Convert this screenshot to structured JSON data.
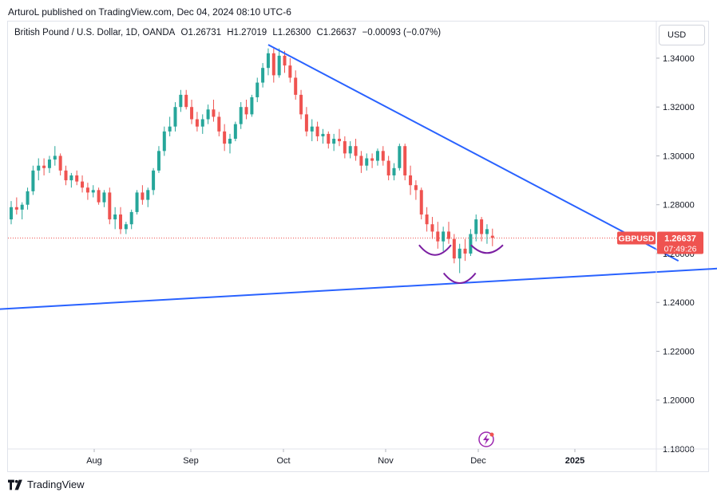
{
  "publisher": "ArturoL published on TradingView.com, Dec 04, 2024 08:10 UTC-6",
  "legend": {
    "symbol_name": "British Pound / U.S. Dollar, 1D, OANDA",
    "open": "O1.26731",
    "high": "H1.27019",
    "low": "L1.26300",
    "close": "C1.26637",
    "change": "−0.00093 (−0.07%)"
  },
  "currency": "USD",
  "price_tag": {
    "symbol": "GBPUSD",
    "price": "1.26637",
    "countdown": "07:49:26"
  },
  "footer": {
    "brand": "TradingView"
  },
  "colors": {
    "up": "#26a69a",
    "down": "#ef5350",
    "trendline": "#2962ff",
    "pattern": "#7b1fa2",
    "price_line": "#ef5350"
  },
  "chart_data": {
    "type": "candlestick",
    "title": "",
    "ylim": [
      1.18,
      1.355
    ],
    "y_ticks": [
      "1.34000",
      "1.32000",
      "1.30000",
      "1.28000",
      "1.26000",
      "1.24000",
      "1.22000",
      "1.20000",
      "1.18000"
    ],
    "x_ticks": [
      "Aug",
      "Sep",
      "Oct",
      "Nov",
      "Dec",
      "2025"
    ],
    "last_price": 1.26637,
    "candles_approx_ohlc": [
      [
        1.274,
        1.2815,
        1.272,
        1.279
      ],
      [
        1.279,
        1.283,
        1.276,
        1.278
      ],
      [
        1.278,
        1.281,
        1.274,
        1.28
      ],
      [
        1.28,
        1.287,
        1.278,
        1.2855
      ],
      [
        1.2855,
        1.296,
        1.284,
        1.294
      ],
      [
        1.294,
        1.299,
        1.29,
        1.296
      ],
      [
        1.296,
        1.299,
        1.292,
        1.295
      ],
      [
        1.295,
        1.3,
        1.293,
        1.2985
      ],
      [
        1.2985,
        1.304,
        1.296,
        1.3
      ],
      [
        1.3,
        1.301,
        1.292,
        1.294
      ],
      [
        1.294,
        1.296,
        1.288,
        1.29
      ],
      [
        1.29,
        1.293,
        1.287,
        1.292
      ],
      [
        1.292,
        1.294,
        1.288,
        1.2895
      ],
      [
        1.2895,
        1.292,
        1.285,
        1.287
      ],
      [
        1.287,
        1.289,
        1.282,
        1.285
      ],
      [
        1.285,
        1.288,
        1.283,
        1.286
      ],
      [
        1.286,
        1.287,
        1.28,
        1.281
      ],
      [
        1.281,
        1.286,
        1.279,
        1.285
      ],
      [
        1.285,
        1.287,
        1.272,
        1.274
      ],
      [
        1.274,
        1.279,
        1.27,
        1.276
      ],
      [
        1.276,
        1.279,
        1.268,
        1.27
      ],
      [
        1.27,
        1.273,
        1.268,
        1.272
      ],
      [
        1.272,
        1.278,
        1.27,
        1.277
      ],
      [
        1.277,
        1.286,
        1.276,
        1.285
      ],
      [
        1.285,
        1.288,
        1.28,
        1.282
      ],
      [
        1.282,
        1.287,
        1.279,
        1.286
      ],
      [
        1.286,
        1.295,
        1.284,
        1.294
      ],
      [
        1.294,
        1.304,
        1.293,
        1.302
      ],
      [
        1.302,
        1.312,
        1.3,
        1.31
      ],
      [
        1.31,
        1.316,
        1.308,
        1.312
      ],
      [
        1.312,
        1.322,
        1.31,
        1.32
      ],
      [
        1.32,
        1.327,
        1.318,
        1.325
      ],
      [
        1.325,
        1.327,
        1.319,
        1.32
      ],
      [
        1.32,
        1.323,
        1.313,
        1.315
      ],
      [
        1.315,
        1.318,
        1.31,
        1.312
      ],
      [
        1.312,
        1.317,
        1.309,
        1.315
      ],
      [
        1.315,
        1.321,
        1.313,
        1.319
      ],
      [
        1.319,
        1.323,
        1.314,
        1.316
      ],
      [
        1.316,
        1.318,
        1.308,
        1.31
      ],
      [
        1.31,
        1.313,
        1.302,
        1.305
      ],
      [
        1.305,
        1.309,
        1.301,
        1.307
      ],
      [
        1.307,
        1.314,
        1.306,
        1.313
      ],
      [
        1.313,
        1.322,
        1.311,
        1.32
      ],
      [
        1.32,
        1.323,
        1.315,
        1.317
      ],
      [
        1.317,
        1.325,
        1.316,
        1.324
      ],
      [
        1.324,
        1.332,
        1.322,
        1.33
      ],
      [
        1.33,
        1.338,
        1.328,
        1.336
      ],
      [
        1.336,
        1.344,
        1.333,
        1.342
      ],
      [
        1.342,
        1.344,
        1.33,
        1.333
      ],
      [
        1.333,
        1.344,
        1.332,
        1.341
      ],
      [
        1.341,
        1.343,
        1.334,
        1.337
      ],
      [
        1.337,
        1.34,
        1.33,
        1.332
      ],
      [
        1.332,
        1.335,
        1.323,
        1.325
      ],
      [
        1.325,
        1.327,
        1.315,
        1.317
      ],
      [
        1.317,
        1.32,
        1.308,
        1.31
      ],
      [
        1.31,
        1.315,
        1.306,
        1.312
      ],
      [
        1.312,
        1.314,
        1.306,
        1.308
      ],
      [
        1.308,
        1.311,
        1.305,
        1.309
      ],
      [
        1.309,
        1.31,
        1.303,
        1.305
      ],
      [
        1.305,
        1.309,
        1.302,
        1.307
      ],
      [
        1.307,
        1.311,
        1.304,
        1.306
      ],
      [
        1.306,
        1.308,
        1.299,
        1.301
      ],
      [
        1.301,
        1.306,
        1.299,
        1.304
      ],
      [
        1.304,
        1.307,
        1.298,
        1.3
      ],
      [
        1.3,
        1.302,
        1.293,
        1.296
      ],
      [
        1.296,
        1.301,
        1.294,
        1.299
      ],
      [
        1.299,
        1.301,
        1.295,
        1.298
      ],
      [
        1.298,
        1.303,
        1.296,
        1.302
      ],
      [
        1.302,
        1.304,
        1.296,
        1.298
      ],
      [
        1.298,
        1.3,
        1.29,
        1.292
      ],
      [
        1.292,
        1.297,
        1.29,
        1.295
      ],
      [
        1.295,
        1.305,
        1.294,
        1.304
      ],
      [
        1.304,
        1.305,
        1.29,
        1.292
      ],
      [
        1.292,
        1.296,
        1.284,
        1.288
      ],
      [
        1.288,
        1.29,
        1.282,
        1.286
      ],
      [
        1.286,
        1.287,
        1.274,
        1.276
      ],
      [
        1.276,
        1.279,
        1.269,
        1.272
      ],
      [
        1.272,
        1.275,
        1.266,
        1.269
      ],
      [
        1.269,
        1.273,
        1.262,
        1.265
      ],
      [
        1.265,
        1.271,
        1.261,
        1.269
      ],
      [
        1.269,
        1.273,
        1.264,
        1.266
      ],
      [
        1.266,
        1.268,
        1.256,
        1.258
      ],
      [
        1.258,
        1.264,
        1.252,
        1.262
      ],
      [
        1.262,
        1.266,
        1.257,
        1.26
      ],
      [
        1.26,
        1.27,
        1.259,
        1.268
      ],
      [
        1.268,
        1.276,
        1.265,
        1.274
      ],
      [
        1.274,
        1.275,
        1.265,
        1.268
      ],
      [
        1.268,
        1.272,
        1.264,
        1.27
      ],
      [
        1.2673,
        1.2702,
        1.263,
        1.2664
      ]
    ],
    "trendlines": [
      {
        "name": "upper",
        "from": [
          47,
          1.3455
        ],
        "to": [
          122,
          1.257
        ]
      },
      {
        "name": "lower",
        "from": [
          -20,
          1.235
        ],
        "to": [
          150,
          1.2565
        ]
      }
    ]
  }
}
